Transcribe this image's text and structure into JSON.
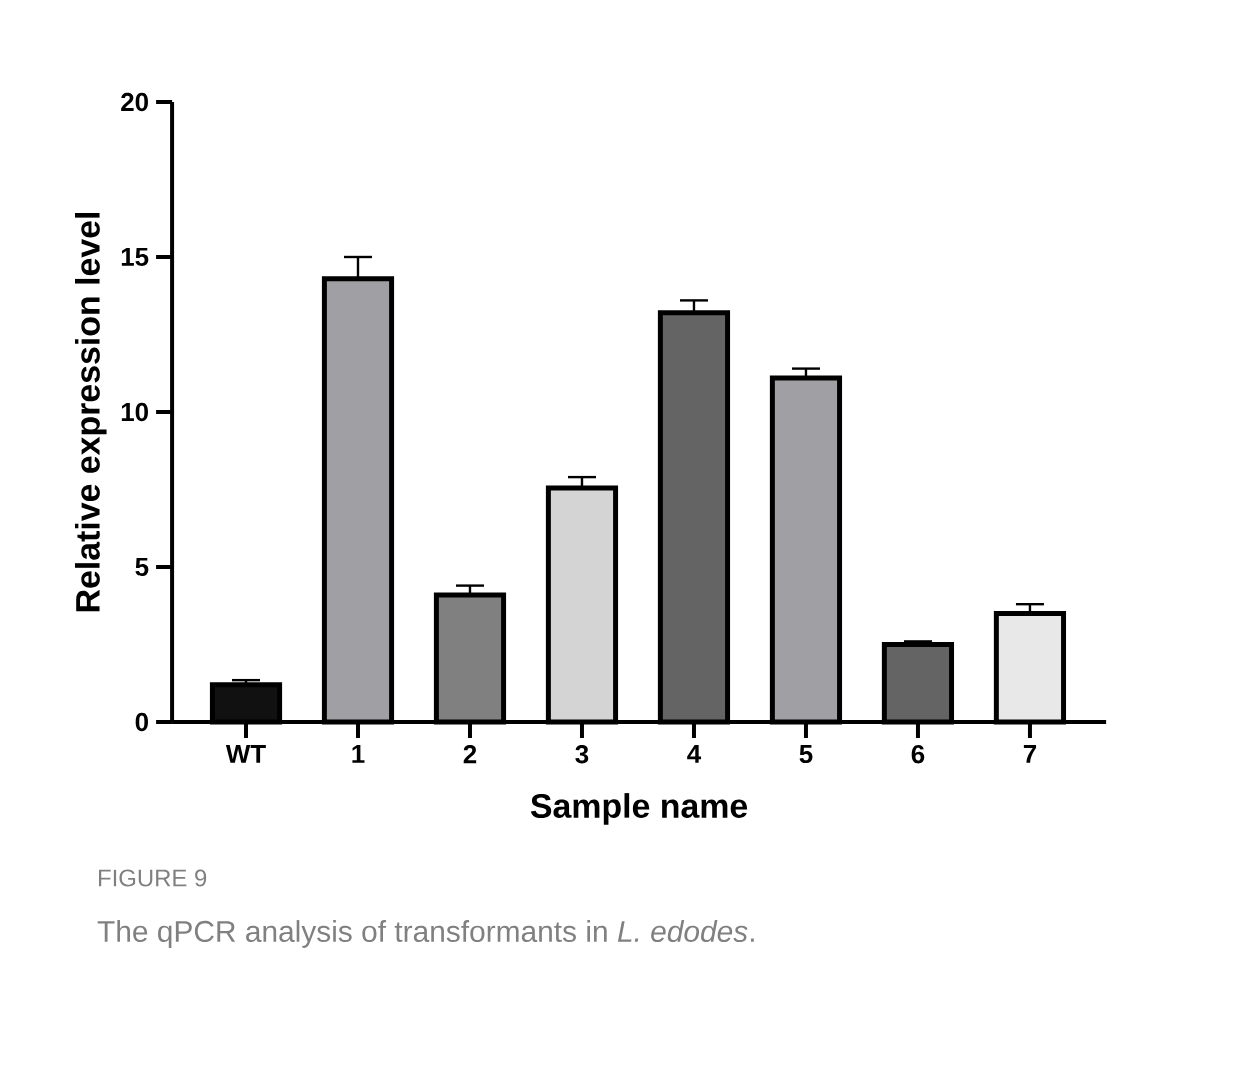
{
  "chart_data": {
    "type": "bar",
    "xlabel": "Sample name",
    "ylabel": "Relative expression level",
    "categories": [
      "WT",
      "1",
      "2",
      "3",
      "4",
      "5",
      "6",
      "7"
    ],
    "values": [
      1.2,
      14.3,
      4.1,
      7.55,
      13.2,
      11.1,
      2.5,
      3.5
    ],
    "errors": [
      [
        1.2,
        1.35
      ],
      [
        14.3,
        15.0
      ],
      [
        4.1,
        4.4
      ],
      [
        7.55,
        7.9
      ],
      [
        13.2,
        13.6
      ],
      [
        11.1,
        11.4
      ],
      [
        2.5,
        2.6
      ],
      [
        3.5,
        3.8
      ]
    ],
    "colors": [
      "#111111",
      "#a0a0a4",
      "#808080",
      "#d4d4d4",
      "#646464",
      "#a0a0a4",
      "#646464",
      "#e8e8e8"
    ],
    "ylim": [
      0,
      20
    ],
    "yticks": [
      0,
      5,
      10,
      15,
      20
    ],
    "grid": false,
    "annotations": [
      "FIGURE 9",
      "The qPCR analysis of transformants in *L. edodes*."
    ]
  }
}
